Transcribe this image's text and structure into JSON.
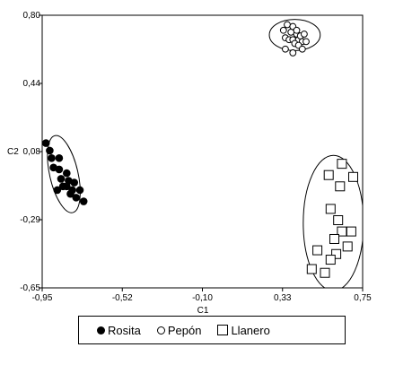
{
  "chart_data": {
    "type": "scatter",
    "xlabel": "C1",
    "ylabel": "C2",
    "xlim": [
      -0.95,
      0.75
    ],
    "ylim": [
      -0.65,
      0.8
    ],
    "x_ticks": [
      "-0,95",
      "-0,52",
      "-0,10",
      "0,33",
      "0,75"
    ],
    "y_ticks": [
      "0,80",
      "0,44",
      "0,08",
      "-0,29",
      "-0,65"
    ],
    "grid": false,
    "legend_position": "bottom",
    "series": [
      {
        "name": "Rosita",
        "marker": "filled-circle",
        "color": "#000000",
        "points": [
          [
            -0.93,
            0.12
          ],
          [
            -0.91,
            0.08
          ],
          [
            -0.9,
            0.04
          ],
          [
            -0.89,
            -0.01
          ],
          [
            -0.86,
            0.04
          ],
          [
            -0.86,
            -0.02
          ],
          [
            -0.85,
            -0.07
          ],
          [
            -0.82,
            -0.11
          ],
          [
            -0.82,
            -0.04
          ],
          [
            -0.81,
            -0.08
          ],
          [
            -0.84,
            -0.11
          ],
          [
            -0.79,
            -0.13
          ],
          [
            -0.78,
            -0.09
          ],
          [
            -0.75,
            -0.13
          ],
          [
            -0.77,
            -0.17
          ],
          [
            -0.87,
            -0.13
          ],
          [
            -0.73,
            -0.19
          ],
          [
            -0.8,
            -0.15
          ]
        ]
      },
      {
        "name": "Pepón",
        "marker": "open-circle",
        "color": "#000000",
        "points": [
          [
            0.35,
            0.75
          ],
          [
            0.37,
            0.71
          ],
          [
            0.38,
            0.74
          ],
          [
            0.33,
            0.72
          ],
          [
            0.34,
            0.68
          ],
          [
            0.36,
            0.67
          ],
          [
            0.38,
            0.67
          ],
          [
            0.4,
            0.7
          ],
          [
            0.41,
            0.67
          ],
          [
            0.42,
            0.69
          ],
          [
            0.39,
            0.65
          ],
          [
            0.43,
            0.66
          ],
          [
            0.45,
            0.66
          ],
          [
            0.34,
            0.62
          ],
          [
            0.38,
            0.6
          ],
          [
            0.41,
            0.64
          ],
          [
            0.43,
            0.62
          ],
          [
            0.44,
            0.7
          ],
          [
            0.4,
            0.72
          ]
        ]
      },
      {
        "name": "Llanero",
        "marker": "open-square",
        "color": "#000000",
        "points": [
          [
            0.64,
            0.01
          ],
          [
            0.57,
            -0.05
          ],
          [
            0.7,
            -0.06
          ],
          [
            0.63,
            -0.11
          ],
          [
            0.58,
            -0.23
          ],
          [
            0.62,
            -0.29
          ],
          [
            0.64,
            -0.35
          ],
          [
            0.69,
            -0.35
          ],
          [
            0.6,
            -0.39
          ],
          [
            0.67,
            -0.43
          ],
          [
            0.51,
            -0.45
          ],
          [
            0.61,
            -0.47
          ],
          [
            0.58,
            -0.5
          ],
          [
            0.48,
            -0.55
          ],
          [
            0.55,
            -0.57
          ]
        ]
      }
    ],
    "ellipses": [
      {
        "group": "Rosita",
        "cx": -0.835,
        "cy": -0.045,
        "rx": 0.075,
        "ry": 0.21,
        "angle": -13
      },
      {
        "group": "Pepón",
        "cx": 0.39,
        "cy": 0.695,
        "rx": 0.135,
        "ry": 0.083,
        "angle": 0
      },
      {
        "group": "Llanero",
        "cx": 0.595,
        "cy": -0.305,
        "rx": 0.16,
        "ry": 0.36,
        "angle": 0
      }
    ]
  }
}
